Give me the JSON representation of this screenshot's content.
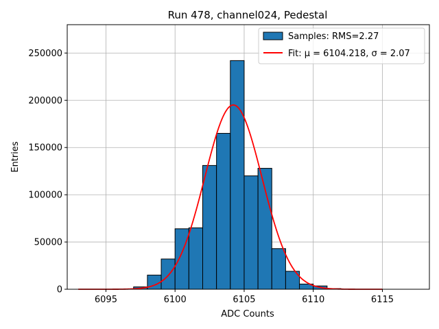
{
  "chart_data": {
    "type": "bar",
    "title": "Run 478, channel024, Pedestal",
    "xlabel": "ADC Counts",
    "ylabel": "Entries",
    "xlim": [
      6092.2,
      6118.4
    ],
    "ylim": [
      0,
      280000
    ],
    "xticks": [
      6095,
      6100,
      6105,
      6110,
      6115
    ],
    "yticks": [
      0,
      50000,
      100000,
      150000,
      200000,
      250000
    ],
    "grid": true,
    "legend_position": "top-right",
    "histogram": {
      "name": "Samples: RMS=2.27",
      "color": "#1f77b4",
      "bins": [
        {
          "x0": 6097,
          "x1": 6098,
          "count": 2500
        },
        {
          "x0": 6098,
          "x1": 6099,
          "count": 15000
        },
        {
          "x0": 6099,
          "x1": 6100,
          "count": 32000
        },
        {
          "x0": 6100,
          "x1": 6101,
          "count": 64000
        },
        {
          "x0": 6101,
          "x1": 6102,
          "count": 65000
        },
        {
          "x0": 6102,
          "x1": 6103,
          "count": 131000
        },
        {
          "x0": 6103,
          "x1": 6104,
          "count": 165000
        },
        {
          "x0": 6104,
          "x1": 6105,
          "count": 242000
        },
        {
          "x0": 6105,
          "x1": 6106,
          "count": 120000
        },
        {
          "x0": 6106,
          "x1": 6107,
          "count": 128000
        },
        {
          "x0": 6107,
          "x1": 6108,
          "count": 43000
        },
        {
          "x0": 6108,
          "x1": 6109,
          "count": 19000
        },
        {
          "x0": 6109,
          "x1": 6110,
          "count": 5500
        },
        {
          "x0": 6110,
          "x1": 6111,
          "count": 3500
        },
        {
          "x0": 6111,
          "x1": 6112,
          "count": 700
        },
        {
          "x0": 6112,
          "x1": 6113,
          "count": 200
        }
      ]
    },
    "fit": {
      "name": "Fit: μ = 6104.218, σ = 2.07",
      "color": "#ff0000",
      "mu": 6104.218,
      "sigma": 2.07,
      "amplitude": 195000,
      "x_range": [
        6093,
        6115
      ]
    }
  }
}
